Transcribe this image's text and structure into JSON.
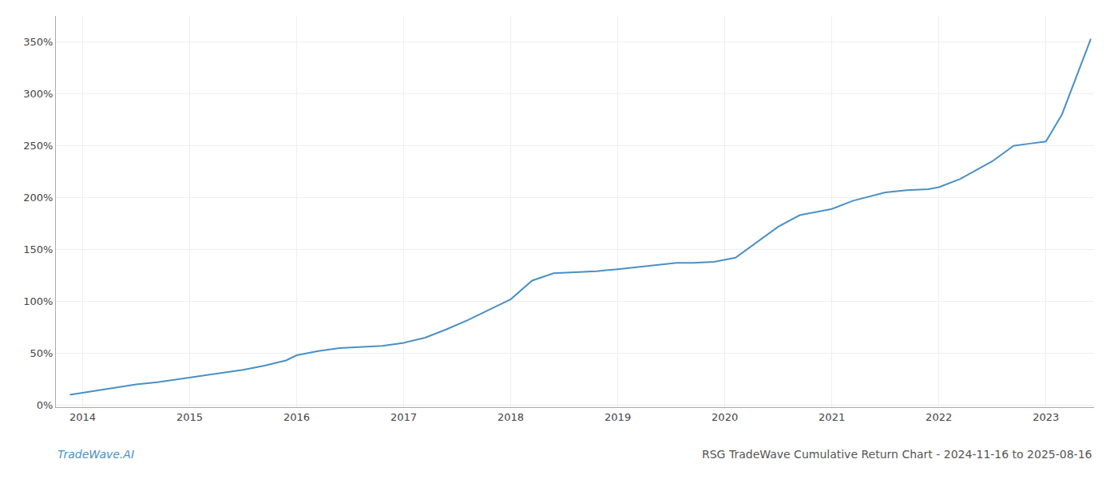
{
  "chart_data": {
    "type": "line",
    "title": "RSG TradeWave Cumulative Return Chart - 2024-11-16 to 2025-08-16",
    "annotations": [
      "TradeWave.AI"
    ],
    "color": "#4a90c4",
    "grid": true,
    "xlim": [
      2013.75,
      2023.45
    ],
    "ylim": [
      -0.02,
      3.75
    ],
    "xticks": [
      2014,
      2015,
      2016,
      2017,
      2018,
      2019,
      2020,
      2021,
      2022,
      2023
    ],
    "yticks": [
      {
        "value": 0.0,
        "label": "0%"
      },
      {
        "value": 0.5,
        "label": "50%"
      },
      {
        "value": 1.0,
        "label": "100%"
      },
      {
        "value": 1.5,
        "label": "150%"
      },
      {
        "value": 2.0,
        "label": "200%"
      },
      {
        "value": 2.5,
        "label": "250%"
      },
      {
        "value": 3.0,
        "label": "300%"
      },
      {
        "value": 3.5,
        "label": "350%"
      }
    ],
    "x": [
      2013.88,
      2014.0,
      2014.15,
      2014.3,
      2014.5,
      2014.7,
      2014.9,
      2015.1,
      2015.3,
      2015.5,
      2015.7,
      2015.9,
      2016.0,
      2016.2,
      2016.4,
      2016.6,
      2016.8,
      2017.0,
      2017.2,
      2017.4,
      2017.6,
      2017.8,
      2018.0,
      2018.2,
      2018.4,
      2018.6,
      2018.8,
      2019.0,
      2019.2,
      2019.4,
      2019.55,
      2019.7,
      2019.9,
      2020.1,
      2020.3,
      2020.5,
      2020.7,
      2020.9,
      2021.0,
      2021.2,
      2021.4,
      2021.5,
      2021.7,
      2021.9,
      2022.0,
      2022.2,
      2022.5,
      2022.7,
      2022.85,
      2023.0,
      2023.15,
      2023.3,
      2023.42
    ],
    "values": [
      0.1,
      0.12,
      0.14,
      0.17,
      0.2,
      0.22,
      0.25,
      0.28,
      0.31,
      0.34,
      0.38,
      0.43,
      0.48,
      0.52,
      0.55,
      0.56,
      0.57,
      0.6,
      0.65,
      0.73,
      0.82,
      0.92,
      1.02,
      1.2,
      1.27,
      1.28,
      1.29,
      1.31,
      1.33,
      1.35,
      1.37,
      1.37,
      1.38,
      1.42,
      1.57,
      1.72,
      1.83,
      1.87,
      1.89,
      1.97,
      2.02,
      2.05,
      2.07,
      2.08,
      2.1,
      2.18,
      2.35,
      2.5,
      2.52,
      2.54,
      2.8,
      3.2,
      3.53
    ]
  }
}
